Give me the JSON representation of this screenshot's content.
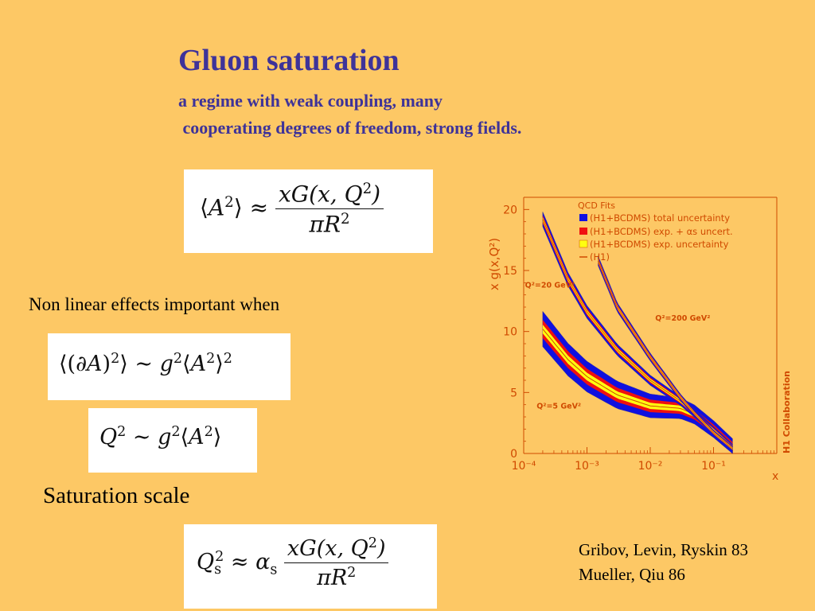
{
  "title": "Gluon saturation",
  "subtitle_line1": "a regime with weak coupling, many",
  "subtitle_line2": " cooperating degrees of freedom, strong fields.",
  "nonlinear_text": "Non linear effects important when",
  "saturation_text": "Saturation scale",
  "references": [
    "Gribov, Levin, Ryskin 83",
    "Mueller, Qiu 86"
  ],
  "equations": {
    "eq1": "⟨A²⟩ ≈ xG(x,Q²) / πR²",
    "eq2": "⟨(∂A)²⟩ ∼ g²⟨A²⟩²",
    "eq3": "Q² ∼ g²⟨A²⟩",
    "eq4": "Q_s² ≈ α_s xG(x,Q²) / πR²"
  },
  "colors": {
    "title": "#3E3399",
    "background": "#FDC865",
    "chart_accent": "#D04A00",
    "band_blue": "#1010E0",
    "band_red": "#F01010",
    "band_yellow": "#FFFF10"
  },
  "chart_data": {
    "type": "line",
    "xlabel": "x",
    "ylabel": "x g(x,Q²)",
    "xscale": "log",
    "xlim": [
      0.0001,
      1
    ],
    "ylim": [
      0,
      21
    ],
    "x_ticks": [
      "10⁻⁴",
      "10⁻³",
      "10⁻²",
      "10⁻¹"
    ],
    "y_ticks": [
      0,
      5,
      10,
      15,
      20
    ],
    "legend_title": "QCD Fits",
    "legend": [
      "(H1+BCDMS) total uncertainty",
      "(H1+BCDMS) exp. + αs uncert.",
      "(H1+BCDMS) exp. uncertainty",
      "(H1)"
    ],
    "side_label": "H1 Collaboration",
    "series": [
      {
        "name": "Q²=5 GeV²",
        "x": [
          0.0002,
          0.0005,
          0.001,
          0.003,
          0.01,
          0.03,
          0.05,
          0.1,
          0.2
        ],
        "y": [
          10.2,
          7.7,
          6.3,
          4.8,
          3.9,
          3.7,
          3.2,
          2.0,
          0.6
        ]
      },
      {
        "name": "Q²=20 GeV²",
        "x": [
          0.0002,
          0.0005,
          0.001,
          0.003,
          0.01,
          0.03,
          0.05,
          0.1,
          0.2
        ],
        "y": [
          19.2,
          14.3,
          11.6,
          8.5,
          6.0,
          4.3,
          3.3,
          1.9,
          0.5
        ]
      },
      {
        "name": "Q²=200 GeV²",
        "x": [
          0.0015,
          0.003,
          0.01,
          0.03,
          0.05,
          0.1,
          0.2
        ],
        "y": [
          15.8,
          12.0,
          7.9,
          4.6,
          3.3,
          1.7,
          0.4
        ]
      }
    ]
  }
}
